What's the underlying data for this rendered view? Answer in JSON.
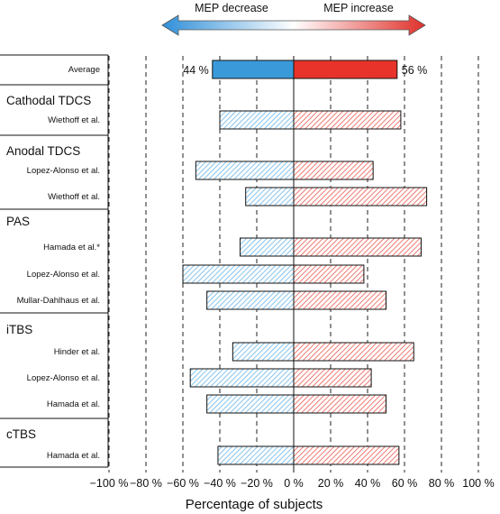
{
  "chart_data": {
    "type": "bar",
    "orientation": "horizontal-diverging",
    "xlabel": "Percentage of subjects",
    "xlim": [
      -100,
      100
    ],
    "xticks": [
      -100,
      -80,
      -60,
      -40,
      -20,
      0,
      20,
      40,
      60,
      80,
      100
    ],
    "xtick_labels": [
      "−100 %",
      "−80 %",
      "−60 %",
      "−40 %",
      "−20 %",
      "0 %",
      "20 %",
      "40 %",
      "60 %",
      "80 %",
      "100 %"
    ],
    "legend": {
      "decrease_label": "MEP decrease",
      "increase_label": "MEP increase"
    },
    "average": {
      "label": "Average",
      "decrease": 44,
      "increase": 56,
      "decrease_text": "44 %",
      "increase_text": "56 %"
    },
    "groups": [
      {
        "name": "Cathodal TDCS",
        "studies": [
          {
            "label": "Wiethoff et al.",
            "decrease": 40,
            "increase": 58
          }
        ]
      },
      {
        "name": "Anodal TDCS",
        "studies": [
          {
            "label": "Lopez-Alonso et al.",
            "decrease": 53,
            "increase": 43
          },
          {
            "label": "Wiethoff et al.",
            "decrease": 26,
            "increase": 72
          }
        ]
      },
      {
        "name": "PAS",
        "studies": [
          {
            "label": "Hamada et al.*",
            "decrease": 29,
            "increase": 69
          },
          {
            "label": "Lopez-Alonso et al.",
            "decrease": 60,
            "increase": 38
          },
          {
            "label": "Mullar-Dahlhaus et al.",
            "decrease": 47,
            "increase": 50
          }
        ]
      },
      {
        "name": "iTBS",
        "studies": [
          {
            "label": "Hinder et al.",
            "decrease": 33,
            "increase": 65
          },
          {
            "label": "Lopez-Alonso et al.",
            "decrease": 56,
            "increase": 42
          },
          {
            "label": "Hamada et al.",
            "decrease": 47,
            "increase": 50
          }
        ]
      },
      {
        "name": "cTBS",
        "studies": [
          {
            "label": "Hamada et al.",
            "decrease": 41,
            "increase": 57
          }
        ]
      }
    ],
    "colors": {
      "decrease": "#3a9ad9",
      "increase": "#e8332a",
      "decrease_hatch": "#6ab4e6",
      "increase_hatch": "#e85a50"
    }
  }
}
